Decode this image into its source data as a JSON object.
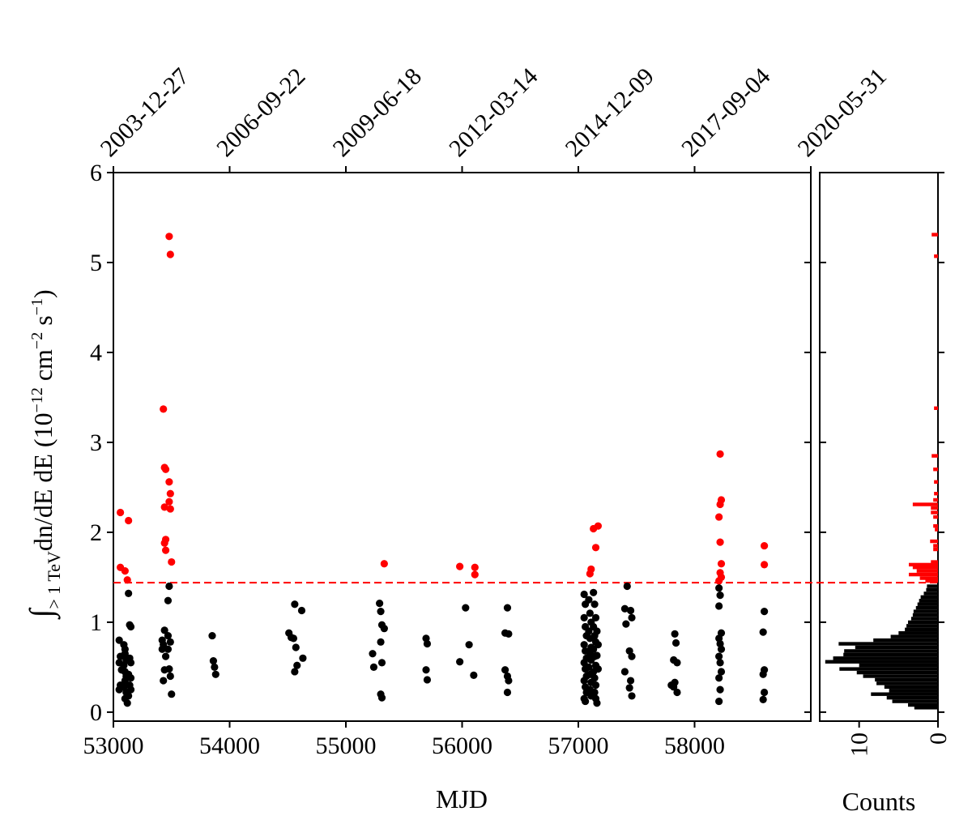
{
  "chart_data": {
    "type": "scatter",
    "xlabel": "MJD",
    "ylabel_main": "dn/dE dE (10",
    "ylabel_exp1": "−12",
    "ylabel_cm": " cm",
    "ylabel_exp2": "−2",
    "ylabel_s": " s",
    "ylabel_exp3": "−1",
    "ylabel_close": ")",
    "ylabel_integral": "∫",
    "ylabel_sub": "> 1 TeV",
    "xlim": [
      53000,
      59000
    ],
    "ylim": [
      -0.1,
      6
    ],
    "x_ticks": [
      "53000",
      "54000",
      "55000",
      "56000",
      "57000",
      "58000"
    ],
    "y_ticks": [
      "0",
      "1",
      "2",
      "3",
      "4",
      "5",
      "6"
    ],
    "top_ticks": [
      "2003-12-27",
      "2006-09-22",
      "2009-06-18",
      "2012-03-14",
      "2014-12-09",
      "2017-09-04",
      "2020-05-31"
    ],
    "top_tick_mjd": [
      53000,
      54000,
      55000,
      56000,
      57000,
      58000,
      59000
    ],
    "threshold": 1.44,
    "threshold_color": "#ff0000",
    "colors": {
      "high": "#ff0000",
      "low": "#000000"
    },
    "series": [
      {
        "color": "#ff0000",
        "points": [
          [
            53060,
            2.22
          ],
          [
            53060,
            1.61
          ],
          [
            53100,
            1.57
          ],
          [
            53120,
            1.47
          ],
          [
            53130,
            2.13
          ],
          [
            53430,
            3.37
          ],
          [
            53440,
            2.72
          ],
          [
            53450,
            2.7
          ],
          [
            53440,
            2.28
          ],
          [
            53450,
            1.92
          ],
          [
            53440,
            1.88
          ],
          [
            53450,
            1.8
          ],
          [
            53480,
            5.29
          ],
          [
            53490,
            5.09
          ],
          [
            53480,
            2.56
          ],
          [
            53490,
            2.43
          ],
          [
            53480,
            2.34
          ],
          [
            53490,
            2.26
          ],
          [
            53500,
            1.67
          ],
          [
            55330,
            1.65
          ],
          [
            55980,
            1.62
          ],
          [
            56110,
            1.61
          ],
          [
            56110,
            1.53
          ],
          [
            57100,
            1.54
          ],
          [
            57110,
            1.59
          ],
          [
            57130,
            2.04
          ],
          [
            57170,
            2.07
          ],
          [
            57150,
            1.83
          ],
          [
            58220,
            2.87
          ],
          [
            58230,
            2.36
          ],
          [
            58220,
            2.31
          ],
          [
            58210,
            2.17
          ],
          [
            58220,
            1.89
          ],
          [
            58230,
            1.65
          ],
          [
            58220,
            1.55
          ],
          [
            58230,
            1.5
          ],
          [
            58210,
            1.46
          ],
          [
            58600,
            1.85
          ],
          [
            58600,
            1.64
          ]
        ]
      },
      {
        "color": "#000000",
        "points": [
          [
            53050,
            0.8
          ],
          [
            53060,
            0.62
          ],
          [
            53050,
            0.55
          ],
          [
            53070,
            0.47
          ],
          [
            53060,
            0.3
          ],
          [
            53050,
            0.25
          ],
          [
            53090,
            0.75
          ],
          [
            53100,
            0.7
          ],
          [
            53100,
            0.65
          ],
          [
            53110,
            0.58
          ],
          [
            53090,
            0.52
          ],
          [
            53100,
            0.45
          ],
          [
            53110,
            0.4
          ],
          [
            53100,
            0.35
          ],
          [
            53090,
            0.28
          ],
          [
            53110,
            0.22
          ],
          [
            53100,
            0.15
          ],
          [
            53120,
            0.1
          ],
          [
            53130,
            1.32
          ],
          [
            53140,
            0.97
          ],
          [
            53150,
            0.95
          ],
          [
            53140,
            0.6
          ],
          [
            53150,
            0.55
          ],
          [
            53130,
            0.42
          ],
          [
            53150,
            0.38
          ],
          [
            53140,
            0.3
          ],
          [
            53150,
            0.25
          ],
          [
            53130,
            0.18
          ],
          [
            53420,
            0.8
          ],
          [
            53430,
            0.75
          ],
          [
            53420,
            0.7
          ],
          [
            53440,
            0.91
          ],
          [
            53450,
            0.62
          ],
          [
            53440,
            0.47
          ],
          [
            53430,
            0.35
          ],
          [
            53470,
            1.24
          ],
          [
            53480,
            1.4
          ],
          [
            53470,
            0.85
          ],
          [
            53490,
            0.78
          ],
          [
            53470,
            0.7
          ],
          [
            53480,
            0.48
          ],
          [
            53490,
            0.4
          ],
          [
            53500,
            0.2
          ],
          [
            53850,
            0.85
          ],
          [
            53860,
            0.57
          ],
          [
            53870,
            0.5
          ],
          [
            53880,
            0.42
          ],
          [
            54510,
            0.88
          ],
          [
            54530,
            0.83
          ],
          [
            54550,
            0.82
          ],
          [
            54560,
            1.2
          ],
          [
            54570,
            0.72
          ],
          [
            54580,
            0.52
          ],
          [
            54560,
            0.45
          ],
          [
            54620,
            1.13
          ],
          [
            54630,
            0.6
          ],
          [
            55230,
            0.65
          ],
          [
            55240,
            0.5
          ],
          [
            55290,
            1.21
          ],
          [
            55300,
            1.12
          ],
          [
            55310,
            0.97
          ],
          [
            55330,
            0.93
          ],
          [
            55300,
            0.78
          ],
          [
            55310,
            0.55
          ],
          [
            55300,
            0.2
          ],
          [
            55310,
            0.16
          ],
          [
            55690,
            0.82
          ],
          [
            55700,
            0.76
          ],
          [
            55690,
            0.47
          ],
          [
            55700,
            0.36
          ],
          [
            55980,
            0.56
          ],
          [
            56030,
            1.16
          ],
          [
            56060,
            0.75
          ],
          [
            56100,
            0.41
          ],
          [
            56370,
            0.88
          ],
          [
            56390,
            1.16
          ],
          [
            56400,
            0.87
          ],
          [
            56370,
            0.47
          ],
          [
            56390,
            0.4
          ],
          [
            56400,
            0.35
          ],
          [
            56390,
            0.22
          ],
          [
            57050,
            1.31
          ],
          [
            57060,
            1.2
          ],
          [
            57050,
            1.05
          ],
          [
            57060,
            0.95
          ],
          [
            57070,
            0.85
          ],
          [
            57050,
            0.75
          ],
          [
            57060,
            0.68
          ],
          [
            57070,
            0.6
          ],
          [
            57050,
            0.55
          ],
          [
            57060,
            0.48
          ],
          [
            57070,
            0.4
          ],
          [
            57050,
            0.35
          ],
          [
            57060,
            0.28
          ],
          [
            57070,
            0.22
          ],
          [
            57050,
            0.15
          ],
          [
            57060,
            0.12
          ],
          [
            57090,
            1.25
          ],
          [
            57100,
            1.1
          ],
          [
            57110,
            1.0
          ],
          [
            57090,
            0.9
          ],
          [
            57100,
            0.82
          ],
          [
            57110,
            0.72
          ],
          [
            57100,
            0.65
          ],
          [
            57110,
            0.58
          ],
          [
            57090,
            0.5
          ],
          [
            57100,
            0.42
          ],
          [
            57110,
            0.33
          ],
          [
            57100,
            0.25
          ],
          [
            57110,
            0.18
          ],
          [
            57130,
            1.33
          ],
          [
            57140,
            1.2
          ],
          [
            57150,
            1.05
          ],
          [
            57130,
            0.95
          ],
          [
            57140,
            0.85
          ],
          [
            57150,
            0.78
          ],
          [
            57130,
            0.7
          ],
          [
            57140,
            0.62
          ],
          [
            57150,
            0.52
          ],
          [
            57130,
            0.45
          ],
          [
            57140,
            0.38
          ],
          [
            57150,
            0.3
          ],
          [
            57140,
            0.22
          ],
          [
            57150,
            0.15
          ],
          [
            57160,
            0.1
          ],
          [
            57160,
            0.9
          ],
          [
            57170,
            0.75
          ],
          [
            57160,
            0.63
          ],
          [
            57170,
            0.48
          ],
          [
            57400,
            1.15
          ],
          [
            57410,
            0.98
          ],
          [
            57420,
            1.4
          ],
          [
            57400,
            0.45
          ],
          [
            57450,
            1.13
          ],
          [
            57460,
            1.05
          ],
          [
            57440,
            0.68
          ],
          [
            57460,
            0.62
          ],
          [
            57450,
            0.35
          ],
          [
            57440,
            0.27
          ],
          [
            57460,
            0.18
          ],
          [
            57800,
            0.3
          ],
          [
            57830,
            0.87
          ],
          [
            57840,
            0.77
          ],
          [
            57820,
            0.58
          ],
          [
            57850,
            0.55
          ],
          [
            57830,
            0.33
          ],
          [
            57820,
            0.28
          ],
          [
            57850,
            0.22
          ],
          [
            58210,
            1.38
          ],
          [
            58220,
            1.3
          ],
          [
            58210,
            1.18
          ],
          [
            58230,
            0.88
          ],
          [
            58210,
            0.82
          ],
          [
            58220,
            0.76
          ],
          [
            58230,
            0.7
          ],
          [
            58210,
            0.62
          ],
          [
            58220,
            0.55
          ],
          [
            58230,
            0.45
          ],
          [
            58210,
            0.38
          ],
          [
            58220,
            0.25
          ],
          [
            58210,
            0.12
          ],
          [
            58600,
            1.12
          ],
          [
            58590,
            0.89
          ],
          [
            58600,
            0.47
          ],
          [
            58590,
            0.42
          ],
          [
            58600,
            0.22
          ],
          [
            58590,
            0.14
          ]
        ]
      }
    ],
    "histogram": {
      "xlabel": "Counts",
      "x_ticks": [
        "10",
        "0"
      ],
      "xlim": [
        15,
        0
      ],
      "bins_red": [
        [
          5.31,
          0.8
        ],
        [
          5.07,
          0.5
        ],
        [
          3.38,
          0.5
        ],
        [
          2.85,
          0.8
        ],
        [
          2.7,
          0.6
        ],
        [
          2.56,
          0.5
        ],
        [
          2.43,
          0.5
        ],
        [
          2.36,
          0.6
        ],
        [
          2.31,
          3.2
        ],
        [
          2.27,
          0.9
        ],
        [
          2.22,
          0.9
        ],
        [
          2.17,
          0.6
        ],
        [
          2.07,
          0.6
        ],
        [
          2.03,
          0.4
        ],
        [
          1.9,
          1
        ],
        [
          1.85,
          0.6
        ],
        [
          1.81,
          0.6
        ],
        [
          1.67,
          0.9
        ],
        [
          1.64,
          3.7
        ],
        [
          1.61,
          3.2
        ],
        [
          1.57,
          2.7
        ],
        [
          1.53,
          3.7
        ],
        [
          1.49,
          2.3
        ],
        [
          1.46,
          1.6
        ]
      ],
      "bins_black": [
        [
          1.4,
          1.4
        ],
        [
          1.36,
          1.5
        ],
        [
          1.32,
          1.8
        ],
        [
          1.28,
          2.2
        ],
        [
          1.24,
          2.4
        ],
        [
          1.2,
          2.6
        ],
        [
          1.16,
          2.8
        ],
        [
          1.12,
          3.1
        ],
        [
          1.08,
          3.2
        ],
        [
          1.04,
          3.4
        ],
        [
          1.0,
          3.8
        ],
        [
          0.96,
          4.0
        ],
        [
          0.92,
          4.2
        ],
        [
          0.88,
          5.0
        ],
        [
          0.84,
          6.0
        ],
        [
          0.8,
          8.2
        ],
        [
          0.76,
          12.6
        ],
        [
          0.72,
          10.5
        ],
        [
          0.68,
          11.9
        ],
        [
          0.64,
          12.0
        ],
        [
          0.6,
          13.3
        ],
        [
          0.56,
          14.3
        ],
        [
          0.52,
          10.0
        ],
        [
          0.48,
          12.5
        ],
        [
          0.44,
          10.3
        ],
        [
          0.4,
          9.5
        ],
        [
          0.36,
          8.0
        ],
        [
          0.32,
          7.8
        ],
        [
          0.28,
          6.8
        ],
        [
          0.24,
          6.2
        ],
        [
          0.2,
          8.5
        ],
        [
          0.16,
          6.5
        ],
        [
          0.12,
          5.8
        ],
        [
          0.08,
          3.8
        ],
        [
          0.05,
          3.0
        ]
      ]
    }
  }
}
